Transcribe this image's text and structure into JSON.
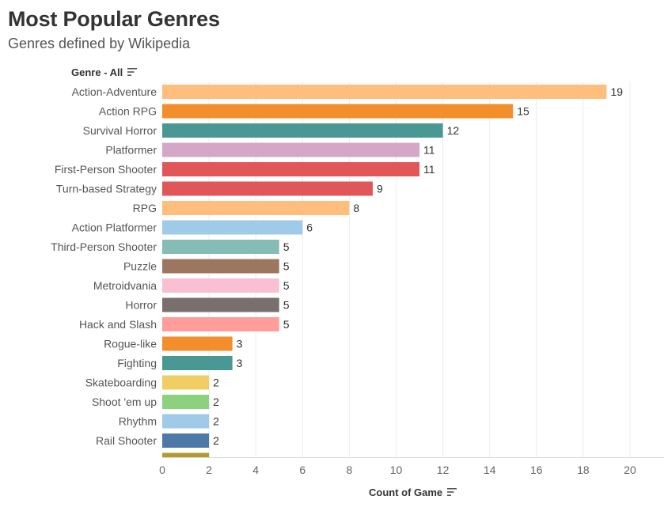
{
  "header": {
    "title": "Most Popular Genres",
    "subtitle": "Genres defined by Wikipedia",
    "genre_filter_label": "Genre - All"
  },
  "icons": {
    "genre_sort": "sort-descending-icon",
    "axis_sort": "sort-descending-icon"
  },
  "chart_data": {
    "type": "bar",
    "orientation": "horizontal",
    "title": "Most Popular Genres",
    "subtitle": "Genres defined by Wikipedia",
    "xlabel": "Count of Game",
    "ylabel": "Genre - All",
    "xlim": [
      0,
      21
    ],
    "xticks": [
      0,
      2,
      4,
      6,
      8,
      10,
      12,
      14,
      16,
      18,
      20
    ],
    "grid": true,
    "categories": [
      "Action-Adventure",
      "Action RPG",
      "Survival Horror",
      "Platformer",
      "First-Person Shooter",
      "Turn-based Strategy",
      "RPG",
      "Action Platformer",
      "Third-Person Shooter",
      "Puzzle",
      "Metroidvania",
      "Horror",
      "Hack and Slash",
      "Rogue-like",
      "Fighting",
      "Skateboarding",
      "Shoot 'em up",
      "Rhythm",
      "Rail Shooter"
    ],
    "values": [
      19,
      15,
      12,
      11,
      11,
      9,
      8,
      6,
      5,
      5,
      5,
      5,
      5,
      3,
      3,
      2,
      2,
      2,
      2
    ],
    "colors": [
      "#FFBE7D",
      "#F28E2B",
      "#499894",
      "#D4A6C8",
      "#E15759",
      "#E15759",
      "#FFBE7D",
      "#A0CBE8",
      "#86BCB6",
      "#9D7660",
      "#FABFD2",
      "#79706E",
      "#FF9D9A",
      "#F28E2B",
      "#499894",
      "#F1CE63",
      "#8CD17D",
      "#A0CBE8",
      "#4E79A7"
    ],
    "partial_bar_color": "#B6992D"
  }
}
